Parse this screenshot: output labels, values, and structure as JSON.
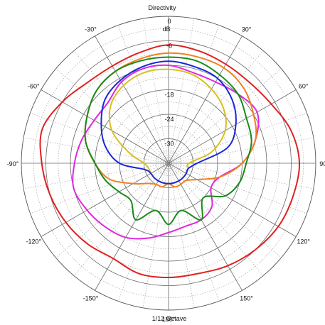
{
  "chart_data": {
    "type": "polar-line",
    "title": "Directivity",
    "subtitle": "1/12 Octave",
    "radial_unit": "dB",
    "radial_range": [
      -36,
      0
    ],
    "radial_ticks": [
      0,
      -6,
      -12,
      -18,
      -24,
      -30
    ],
    "radial_tick_labels": [
      "0",
      "-6",
      "",
      "-18",
      "-24",
      "-30"
    ],
    "angle_ticks": [
      0,
      30,
      60,
      90,
      120,
      150,
      180,
      -150,
      -120,
      -90,
      -60,
      -30
    ],
    "angle_tick_labels": [
      "",
      "30°",
      "60°",
      "90°",
      "120°",
      "150°",
      "180°",
      "-150°",
      "-120°",
      "-90°",
      "-60°",
      "-30°"
    ],
    "grid": true,
    "series": [
      {
        "color": "#e02020",
        "values": [
          [
            0,
            -7
          ],
          [
            15,
            -7.5
          ],
          [
            30,
            -8
          ],
          [
            45,
            -8
          ],
          [
            60,
            -7
          ],
          [
            75,
            -5
          ],
          [
            90,
            -4
          ],
          [
            105,
            -4.5
          ],
          [
            120,
            -5
          ],
          [
            135,
            -6
          ],
          [
            150,
            -7
          ],
          [
            165,
            -8
          ],
          [
            180,
            -8
          ],
          [
            195,
            -8
          ],
          [
            210,
            -9
          ],
          [
            225,
            -8
          ],
          [
            240,
            -7
          ],
          [
            255,
            -6
          ],
          [
            270,
            -5
          ],
          [
            285,
            -4
          ],
          [
            300,
            -6
          ],
          [
            315,
            -8
          ],
          [
            330,
            -8.5
          ],
          [
            345,
            -8
          ]
        ]
      },
      {
        "color": "#e028e0",
        "values": [
          [
            0,
            -12
          ],
          [
            15,
            -13
          ],
          [
            30,
            -13
          ],
          [
            45,
            -12
          ],
          [
            60,
            -11
          ],
          [
            75,
            -14
          ],
          [
            90,
            -18
          ],
          [
            105,
            -23
          ],
          [
            120,
            -24
          ],
          [
            135,
            -21
          ],
          [
            150,
            -20
          ],
          [
            165,
            -20
          ],
          [
            180,
            -19
          ],
          [
            195,
            -17
          ],
          [
            210,
            -15
          ],
          [
            225,
            -14
          ],
          [
            240,
            -13
          ],
          [
            255,
            -12
          ],
          [
            270,
            -13
          ],
          [
            285,
            -14
          ],
          [
            300,
            -15
          ],
          [
            315,
            -15
          ],
          [
            330,
            -13
          ],
          [
            345,
            -12
          ]
        ]
      },
      {
        "color": "#f08020",
        "values": [
          [
            0,
            -9
          ],
          [
            15,
            -9
          ],
          [
            30,
            -9
          ],
          [
            45,
            -10
          ],
          [
            60,
            -12
          ],
          [
            75,
            -14
          ],
          [
            90,
            -18
          ],
          [
            105,
            -23
          ],
          [
            120,
            -28
          ],
          [
            135,
            -30
          ],
          [
            150,
            -30
          ],
          [
            165,
            -30
          ],
          [
            180,
            -31
          ],
          [
            195,
            -30
          ],
          [
            210,
            -30
          ],
          [
            225,
            -29
          ],
          [
            240,
            -26
          ],
          [
            255,
            -21
          ],
          [
            270,
            -18
          ],
          [
            285,
            -15
          ],
          [
            300,
            -13
          ],
          [
            315,
            -11
          ],
          [
            330,
            -10
          ],
          [
            345,
            -9.5
          ]
        ]
      },
      {
        "color": "#1a8a1a",
        "values": [
          [
            0,
            -10
          ],
          [
            15,
            -10
          ],
          [
            30,
            -11
          ],
          [
            45,
            -12
          ],
          [
            60,
            -14
          ],
          [
            75,
            -15
          ],
          [
            90,
            -17
          ],
          [
            105,
            -18
          ],
          [
            120,
            -20
          ],
          [
            135,
            -24
          ],
          [
            150,
            -20
          ],
          [
            165,
            -24
          ],
          [
            180,
            -21
          ],
          [
            195,
            -24
          ],
          [
            210,
            -20
          ],
          [
            225,
            -23
          ],
          [
            240,
            -22
          ],
          [
            255,
            -20
          ],
          [
            270,
            -18
          ],
          [
            285,
            -15
          ],
          [
            300,
            -13
          ],
          [
            315,
            -11
          ],
          [
            330,
            -10
          ],
          [
            345,
            -10
          ]
        ]
      },
      {
        "color": "#d8c020",
        "values": [
          [
            0,
            -13
          ],
          [
            15,
            -13.5
          ],
          [
            30,
            -15
          ],
          [
            45,
            -17
          ],
          [
            60,
            -20
          ],
          [
            75,
            -25
          ],
          [
            90,
            -31
          ],
          [
            105,
            -31
          ],
          [
            120,
            -31
          ],
          [
            135,
            -31
          ],
          [
            150,
            -31
          ],
          [
            165,
            -31
          ],
          [
            180,
            -31
          ],
          [
            195,
            -31
          ],
          [
            210,
            -31
          ],
          [
            225,
            -31
          ],
          [
            240,
            -31
          ],
          [
            255,
            -31
          ],
          [
            270,
            -30
          ],
          [
            285,
            -26
          ],
          [
            300,
            -20
          ],
          [
            315,
            -16
          ],
          [
            330,
            -14
          ],
          [
            345,
            -13
          ]
        ]
      },
      {
        "color": "#1a28d8",
        "values": [
          [
            0,
            -11
          ],
          [
            15,
            -11.5
          ],
          [
            30,
            -12
          ],
          [
            45,
            -14
          ],
          [
            60,
            -17
          ],
          [
            75,
            -21
          ],
          [
            90,
            -29
          ],
          [
            105,
            -31
          ],
          [
            120,
            -31
          ],
          [
            135,
            -31
          ],
          [
            150,
            -31
          ],
          [
            165,
            -31
          ],
          [
            180,
            -31
          ],
          [
            195,
            -31
          ],
          [
            210,
            -31
          ],
          [
            225,
            -31
          ],
          [
            240,
            -31
          ],
          [
            255,
            -30
          ],
          [
            270,
            -24
          ],
          [
            285,
            -20
          ],
          [
            300,
            -17
          ],
          [
            315,
            -14
          ],
          [
            330,
            -12.5
          ],
          [
            345,
            -11.5
          ]
        ]
      }
    ]
  }
}
